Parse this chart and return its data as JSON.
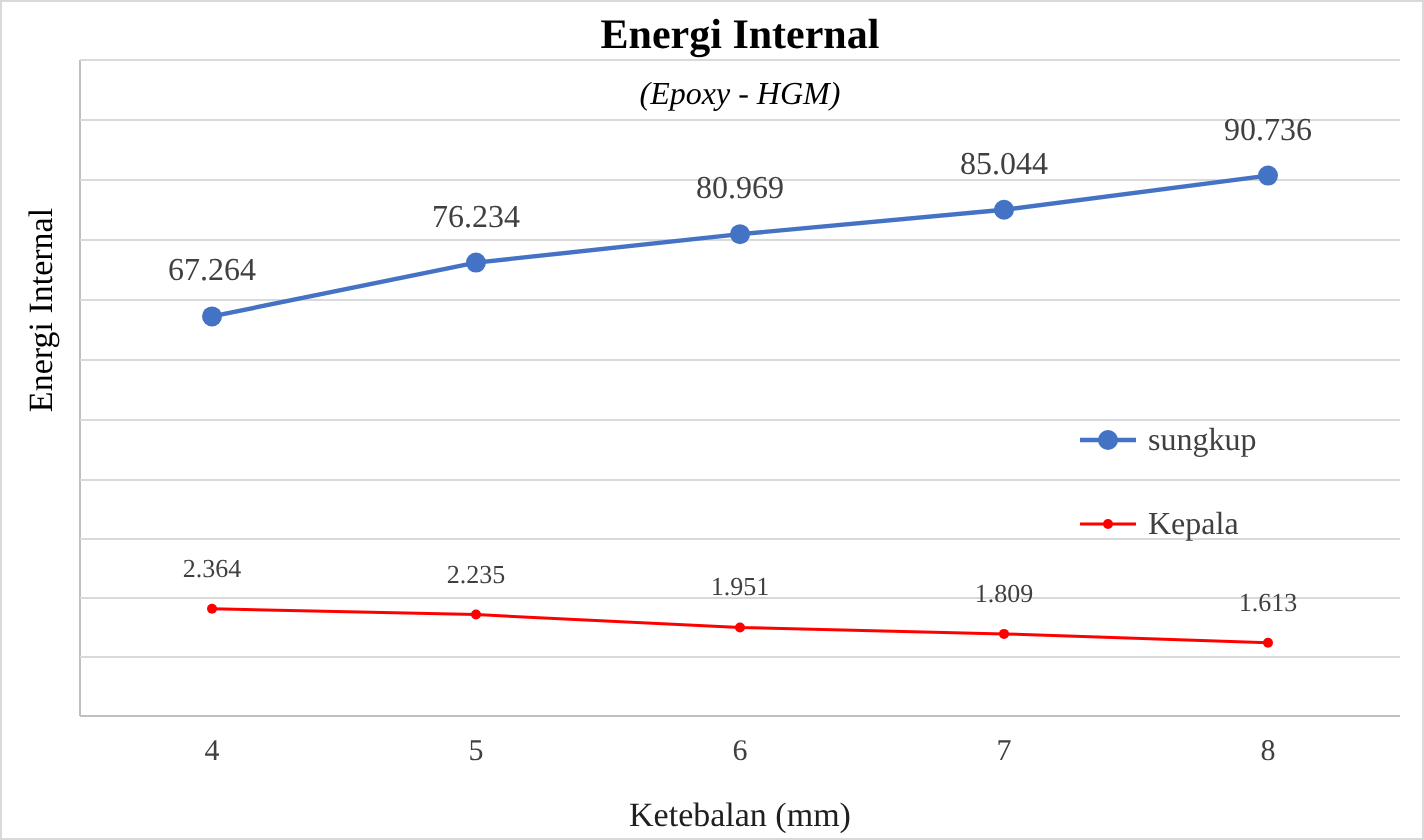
{
  "chart_data": [
    {
      "type": "line",
      "title": "Energi Internal",
      "subtitle": "(Epoxy - HGM)",
      "ylabel": "Energi Internal",
      "categories": [
        "4",
        "5",
        "6",
        "7",
        "8"
      ],
      "series": [
        {
          "name": "sungkup",
          "color": "#4472c4",
          "values": [
            67.264,
            76.234,
            80.969,
            85.044,
            90.736
          ]
        }
      ],
      "ylim": [
        40,
        110
      ],
      "yticks": [
        {
          "value": 50,
          "label": null
        },
        {
          "value": 60,
          "label": null
        },
        {
          "value": 70,
          "label": null
        },
        {
          "value": 80,
          "label": null
        },
        {
          "value": 90,
          "label": null
        },
        {
          "value": 100,
          "label": null
        },
        {
          "value": 110,
          "label": null
        }
      ],
      "grid": "y",
      "legend": "bottom right",
      "marker": "circle",
      "data_labels": true,
      "tick_labels": false
    },
    {
      "type": "line",
      "xlabel": "Ketebalan (mm)",
      "categories": [
        "4",
        "5",
        "6",
        "7",
        "8"
      ],
      "series": [
        {
          "name": "Kepala",
          "color": "#ff0000",
          "values": [
            2.364,
            2.235,
            1.951,
            1.809,
            1.613
          ]
        }
      ],
      "ylim": [
        0,
        5.2
      ],
      "yticks": [
        {
          "value": 0,
          "label": null
        },
        {
          "value": 1.3,
          "label": null
        },
        {
          "value": 2.6,
          "label": null
        },
        {
          "value": 3.9,
          "label": null
        },
        {
          "value": 5.2,
          "label": null
        }
      ],
      "grid": "y",
      "legend": "top right",
      "marker": "circle",
      "data_labels": true,
      "tick_labels": "x"
    }
  ]
}
